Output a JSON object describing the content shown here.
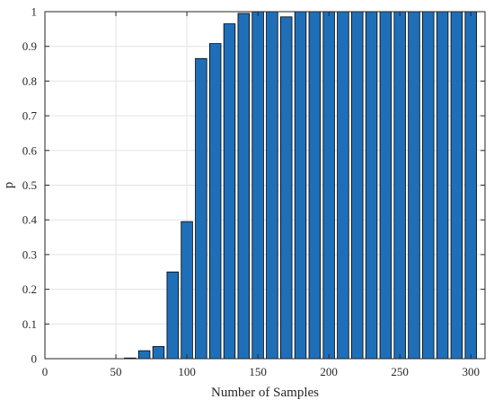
{
  "chart_data": {
    "type": "bar",
    "title": "",
    "xlabel": "Number of Samples",
    "ylabel": "p",
    "xlim": [
      0,
      310
    ],
    "ylim": [
      0,
      1
    ],
    "grid": true,
    "bar_color": "#1f6fb8",
    "bar_edge_color": "#000000",
    "grid_color": "#e3e3e3",
    "x_ticks": [
      0,
      50,
      100,
      150,
      200,
      250,
      300
    ],
    "y_ticks": [
      0,
      0.1,
      0.2,
      0.3,
      0.4,
      0.5,
      0.6,
      0.7,
      0.8,
      0.9,
      1
    ],
    "x_tick_labels": [
      "0",
      "50",
      "100",
      "150",
      "200",
      "250",
      "300"
    ],
    "y_tick_labels": [
      "0",
      "0.1",
      "0.2",
      "0.3",
      "0.4",
      "0.5",
      "0.6",
      "0.7",
      "0.8",
      "0.9",
      "1"
    ],
    "x": [
      10,
      20,
      30,
      40,
      50,
      60,
      70,
      80,
      90,
      100,
      110,
      120,
      130,
      140,
      150,
      160,
      170,
      180,
      190,
      200,
      210,
      220,
      230,
      240,
      250,
      260,
      270,
      280,
      290,
      300
    ],
    "values": [
      0,
      0,
      0,
      0,
      0,
      0.002,
      0.023,
      0.035,
      0.25,
      0.395,
      0.865,
      0.908,
      0.965,
      0.995,
      1,
      1,
      0.985,
      1,
      1,
      1,
      1,
      1,
      1,
      1,
      1,
      1,
      1,
      1,
      1,
      1
    ]
  }
}
